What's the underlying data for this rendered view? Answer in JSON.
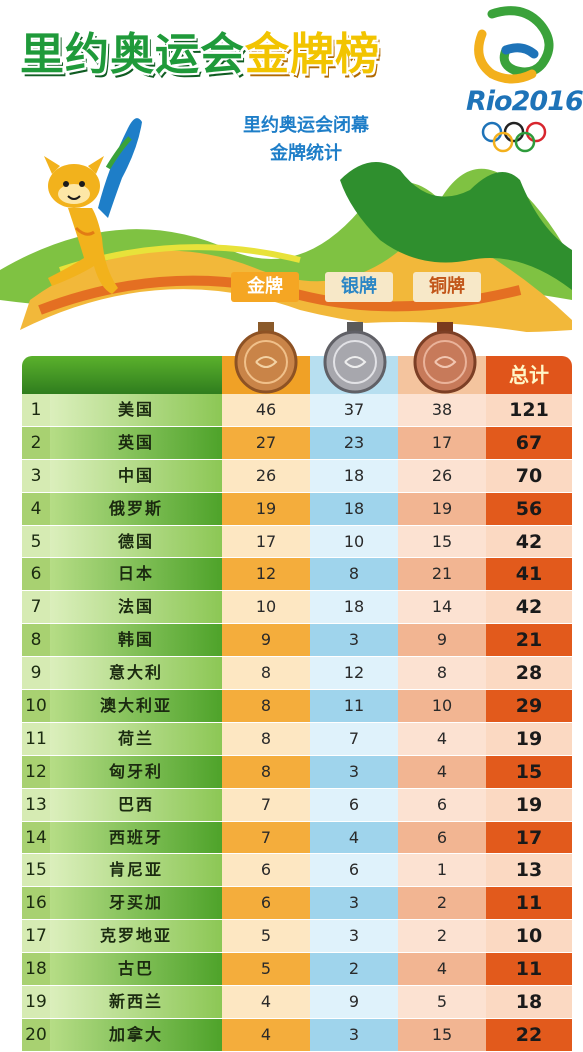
{
  "header": {
    "title_main": "里约奥运会",
    "title_accent": "金牌榜",
    "subtitle_line1": "里约奥运会闭幕",
    "subtitle_line2": "金牌统计",
    "logo_text": "Rio2016"
  },
  "columns": {
    "gold": "金牌",
    "silver": "银牌",
    "bronze": "铜牌",
    "total": "总计"
  },
  "colors": {
    "green": "#2f7d1e",
    "gold": "#f0a126",
    "silver": "#9fd4ec",
    "bronze": "#f2b592",
    "total": "#e0551b",
    "title_green": "#1f9a3a",
    "subtitle_blue": "#1e7ec8"
  },
  "rows": [
    {
      "rank": "1",
      "country": "美国",
      "gold": "46",
      "silver": "37",
      "bronze": "38",
      "total": "121"
    },
    {
      "rank": "2",
      "country": "英国",
      "gold": "27",
      "silver": "23",
      "bronze": "17",
      "total": "67"
    },
    {
      "rank": "3",
      "country": "中国",
      "gold": "26",
      "silver": "18",
      "bronze": "26",
      "total": "70"
    },
    {
      "rank": "4",
      "country": "俄罗斯",
      "gold": "19",
      "silver": "18",
      "bronze": "19",
      "total": "56"
    },
    {
      "rank": "5",
      "country": "德国",
      "gold": "17",
      "silver": "10",
      "bronze": "15",
      "total": "42"
    },
    {
      "rank": "6",
      "country": "日本",
      "gold": "12",
      "silver": "8",
      "bronze": "21",
      "total": "41"
    },
    {
      "rank": "7",
      "country": "法国",
      "gold": "10",
      "silver": "18",
      "bronze": "14",
      "total": "42"
    },
    {
      "rank": "8",
      "country": "韩国",
      "gold": "9",
      "silver": "3",
      "bronze": "9",
      "total": "21"
    },
    {
      "rank": "9",
      "country": "意大利",
      "gold": "8",
      "silver": "12",
      "bronze": "8",
      "total": "28"
    },
    {
      "rank": "10",
      "country": "澳大利亚",
      "gold": "8",
      "silver": "11",
      "bronze": "10",
      "total": "29"
    },
    {
      "rank": "11",
      "country": "荷兰",
      "gold": "8",
      "silver": "7",
      "bronze": "4",
      "total": "19"
    },
    {
      "rank": "12",
      "country": "匈牙利",
      "gold": "8",
      "silver": "3",
      "bronze": "4",
      "total": "15"
    },
    {
      "rank": "13",
      "country": "巴西",
      "gold": "7",
      "silver": "6",
      "bronze": "6",
      "total": "19"
    },
    {
      "rank": "14",
      "country": "西班牙",
      "gold": "7",
      "silver": "4",
      "bronze": "6",
      "total": "17"
    },
    {
      "rank": "15",
      "country": "肯尼亚",
      "gold": "6",
      "silver": "6",
      "bronze": "1",
      "total": "13"
    },
    {
      "rank": "16",
      "country": "牙买加",
      "gold": "6",
      "silver": "3",
      "bronze": "2",
      "total": "11"
    },
    {
      "rank": "17",
      "country": "克罗地亚",
      "gold": "5",
      "silver": "3",
      "bronze": "2",
      "total": "10"
    },
    {
      "rank": "18",
      "country": "古巴",
      "gold": "5",
      "silver": "2",
      "bronze": "4",
      "total": "11"
    },
    {
      "rank": "19",
      "country": "新西兰",
      "gold": "4",
      "silver": "9",
      "bronze": "5",
      "total": "18"
    },
    {
      "rank": "20",
      "country": "加拿大",
      "gold": "4",
      "silver": "3",
      "bronze": "15",
      "total": "22"
    }
  ]
}
